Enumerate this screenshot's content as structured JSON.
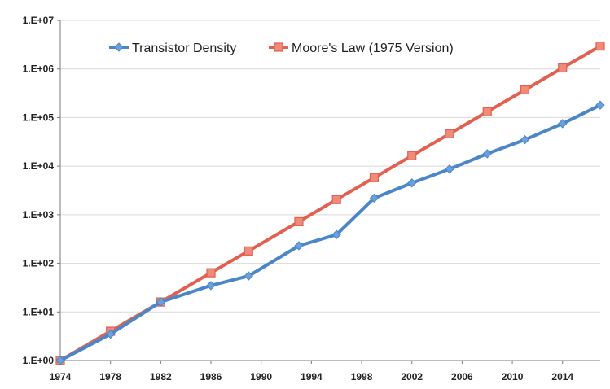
{
  "chart_data": {
    "type": "line",
    "title": "",
    "xlabel": "",
    "ylabel": "",
    "y_scale": "log",
    "xlim": [
      1974,
      2017
    ],
    "ylim": [
      1,
      10000000
    ],
    "grid": "horizontal",
    "legend_placement": "top-left",
    "x_ticks": [
      "1974",
      "1978",
      "1982",
      "1986",
      "1990",
      "1994",
      "1998",
      "2002",
      "2006",
      "2010",
      "2014"
    ],
    "y_ticks": [
      "1.E+00",
      "1.E+01",
      "1.E+02",
      "1.E+03",
      "1.E+04",
      "1.E+05",
      "1.E+06",
      "1.E+07"
    ],
    "series": [
      {
        "name": "Transistor Density",
        "color": "#4a86c8",
        "marker": "diamond",
        "x": [
          1974,
          1978,
          1982,
          1986,
          1989,
          1993,
          1996,
          1999,
          2002,
          2005,
          2008,
          2011,
          2014,
          2017
        ],
        "y": [
          1,
          3.5,
          16,
          35,
          55,
          230,
          390,
          2200,
          4500,
          8700,
          18000,
          35000,
          75000,
          180000
        ]
      },
      {
        "name": "Moore's Law (1975 Version)",
        "color": "#e2604f",
        "marker": "square",
        "x": [
          1974,
          1978,
          1982,
          1986,
          1989,
          1993,
          1996,
          1999,
          2002,
          2005,
          2008,
          2011,
          2014,
          2017
        ],
        "y": [
          1,
          4,
          16,
          64,
          180,
          720,
          2050,
          5800,
          16400,
          46300,
          131000,
          370000,
          1050000,
          2960000
        ]
      }
    ]
  }
}
